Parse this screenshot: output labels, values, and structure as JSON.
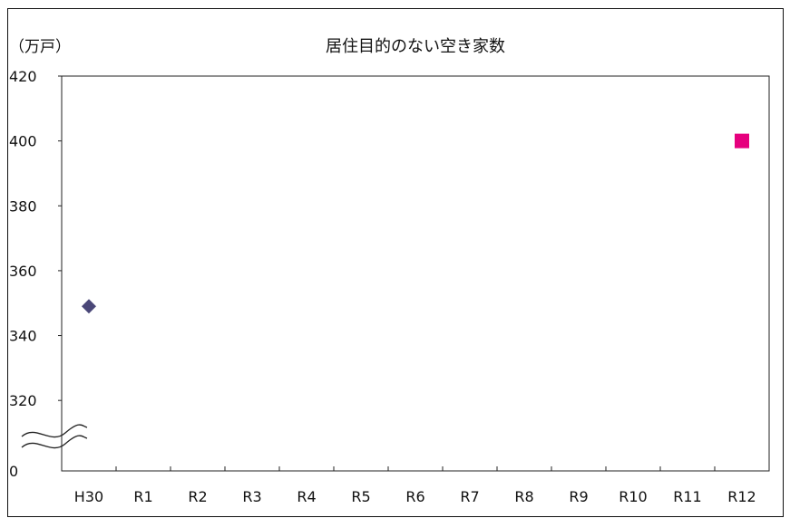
{
  "chart_data": {
    "type": "scatter",
    "title": "居住目的のない空き家数",
    "ylabel": "（万戸）",
    "xlabel": "",
    "categories": [
      "H30",
      "R1",
      "R2",
      "R3",
      "R4",
      "R5",
      "R6",
      "R7",
      "R8",
      "R9",
      "R10",
      "R11",
      "R12"
    ],
    "y_ticks": [
      "0",
      "320",
      "340",
      "360",
      "380",
      "400",
      "420"
    ],
    "ylim": [
      310,
      420
    ],
    "axis_break": true,
    "grid": false,
    "series": [
      {
        "x": "H30",
        "value": 349,
        "marker": "diamond",
        "color": "#4a4778"
      },
      {
        "x": "R12",
        "value": 400,
        "marker": "square",
        "color": "#e6007e"
      }
    ]
  }
}
